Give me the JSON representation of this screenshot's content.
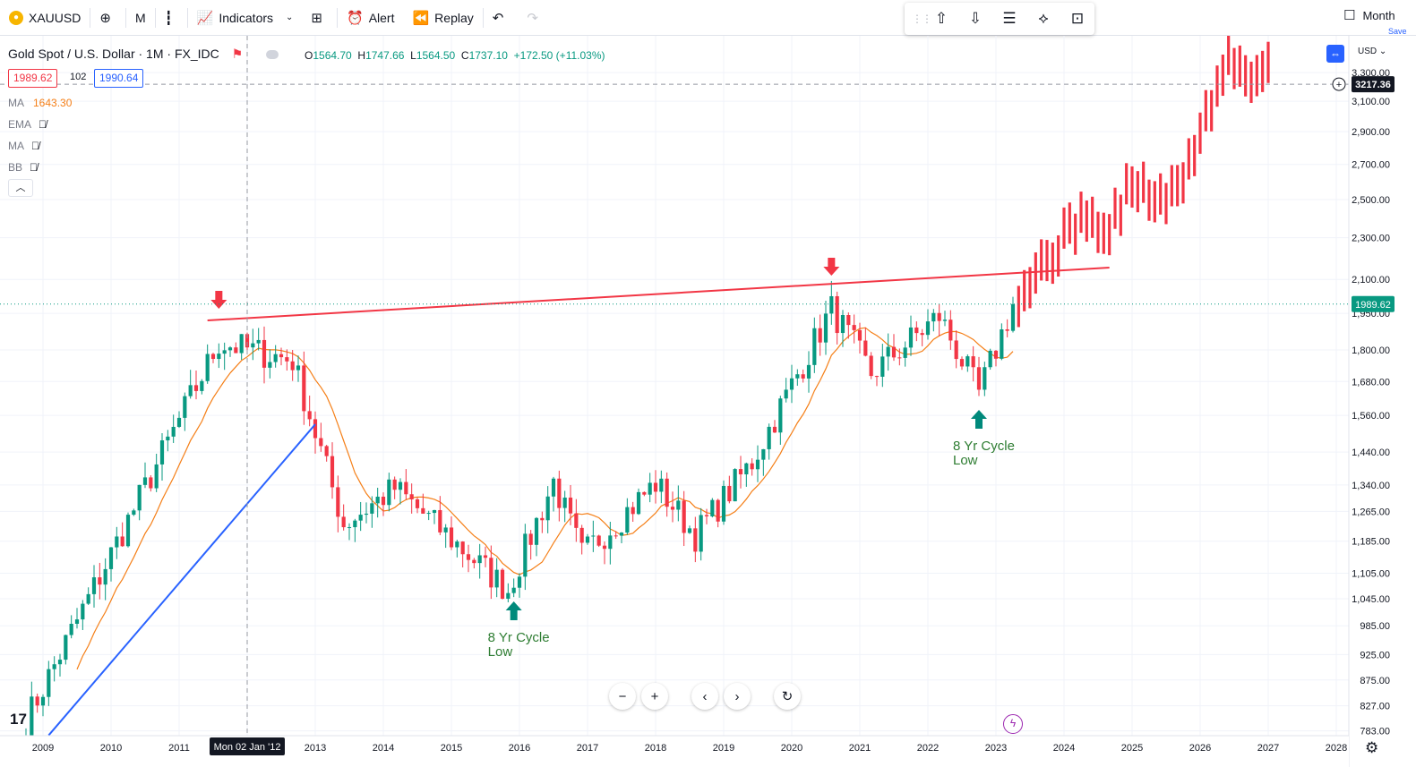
{
  "toolbar": {
    "symbol": "XAUUSD",
    "interval": "M",
    "indicators_label": "Indicators",
    "alert_label": "Alert",
    "replay_label": "Replay",
    "right_label": "Month",
    "right_sub": "Save"
  },
  "legend": {
    "title": "Gold Spot / U.S. Dollar · 1M · FX_IDC",
    "ohlc": {
      "o": "1564.70",
      "h": "1747.66",
      "l": "1564.50",
      "c": "1737.10",
      "chg": "+172.50 (+11.03%)"
    },
    "bid": "1989.62",
    "spread": "102",
    "ask": "1990.64",
    "indicators": [
      {
        "name": "MA",
        "value": "1643.30"
      },
      {
        "name": "EMA",
        "value": ""
      },
      {
        "name": "MA",
        "value": ""
      },
      {
        "name": "BB",
        "value": ""
      }
    ]
  },
  "chart_data": {
    "type": "candlestick",
    "currency": "USD",
    "scale": "log",
    "ylim": [
      783,
      3500
    ],
    "y_ticks": [
      783,
      827,
      875,
      925,
      985,
      1045,
      1105,
      1185,
      1265,
      1340,
      1440,
      1560,
      1680,
      1800,
      1950,
      2100,
      2300,
      2500,
      2700,
      2900,
      3100,
      3300
    ],
    "x_ticks": [
      "2009",
      "2010",
      "2011",
      "2013",
      "2014",
      "2015",
      "2016",
      "2017",
      "2018",
      "2019",
      "2020",
      "2021",
      "2022",
      "2023",
      "2024",
      "2025",
      "2026",
      "2027",
      "2028"
    ],
    "crosshair_date": "Mon 02 Jan '12",
    "crosshair_price": "3217.36",
    "last_price": "1989.62",
    "anchors": [
      {
        "date": "2008-10",
        "price": 800
      },
      {
        "date": "2011-08",
        "price": 1830
      },
      {
        "date": "2012-09",
        "price": 1760
      },
      {
        "date": "2013-06",
        "price": 1230
      },
      {
        "date": "2014-03",
        "price": 1330
      },
      {
        "date": "2015-11",
        "price": 1065
      },
      {
        "date": "2016-07",
        "price": 1350
      },
      {
        "date": "2016-12",
        "price": 1150
      },
      {
        "date": "2018-01",
        "price": 1345
      },
      {
        "date": "2018-08",
        "price": 1200
      },
      {
        "date": "2019-06",
        "price": 1410
      },
      {
        "date": "2020-08",
        "price": 1970
      },
      {
        "date": "2021-03",
        "price": 1710
      },
      {
        "date": "2022-03",
        "price": 1940
      },
      {
        "date": "2022-10",
        "price": 1635
      },
      {
        "date": "2023-04",
        "price": 1990
      }
    ],
    "projection_anchors": [
      {
        "date": "2023-04",
        "price": 1990
      },
      {
        "date": "2023-08",
        "price": 2130
      },
      {
        "date": "2024-05",
        "price": 2440
      },
      {
        "date": "2024-08",
        "price": 2290
      },
      {
        "date": "2025-01",
        "price": 2600
      },
      {
        "date": "2025-06",
        "price": 2490
      },
      {
        "date": "2025-09",
        "price": 2550
      },
      {
        "date": "2026-06",
        "price": 3400
      },
      {
        "date": "2026-10",
        "price": 3250
      },
      {
        "date": "2027-01",
        "price": 3420
      }
    ],
    "resistance_line": {
      "start": {
        "date": "2011-06",
        "price": 1920
      },
      "end": {
        "date": "2024-09",
        "price": 2155
      }
    },
    "support_line": {
      "start": {
        "date": "2009-02",
        "price": 783
      },
      "end": {
        "date": "2013-01",
        "price": 1530
      }
    },
    "annotations": [
      {
        "text": "8 Yr Cycle",
        "text2": "Low",
        "date": "2015-12",
        "price": 1065
      },
      {
        "text": "8 Yr Cycle",
        "text2": "Low",
        "date": "2022-10",
        "price": 1625
      }
    ],
    "down_arrows": [
      {
        "date": "2011-08"
      },
      {
        "date": "2020-08"
      }
    ],
    "colors": {
      "up": "#089981",
      "down": "#f23645",
      "ma": "#f57f17",
      "resistance": "#f23645",
      "support": "#2962ff",
      "projection": "#f23645",
      "annotation": "#2e7d32",
      "cycle_arrow": "#00897b"
    }
  }
}
